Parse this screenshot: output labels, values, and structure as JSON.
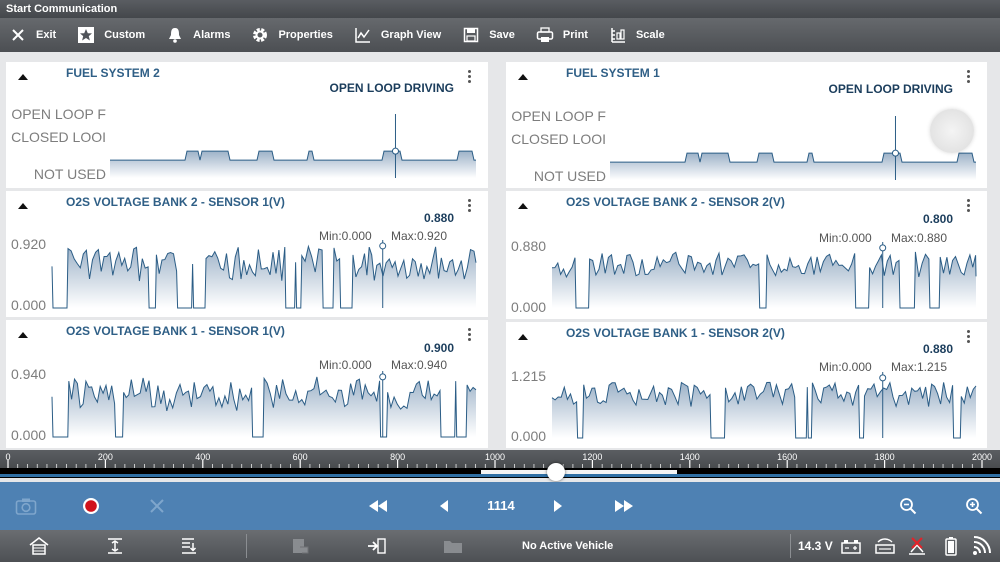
{
  "window": {
    "title": "Start Communication"
  },
  "toolbar": {
    "items": [
      {
        "label": "Exit",
        "icon": "close-icon"
      },
      {
        "label": "Custom",
        "icon": "star-icon"
      },
      {
        "label": "Alarms",
        "icon": "bell-icon"
      },
      {
        "label": "Properties",
        "icon": "gear-icon"
      },
      {
        "label": "Graph View",
        "icon": "graph-icon"
      },
      {
        "label": "Save",
        "icon": "save-icon"
      },
      {
        "label": "Print",
        "icon": "print-icon"
      },
      {
        "label": "Scale",
        "icon": "scale-icon"
      }
    ]
  },
  "panels": {
    "fuel2": {
      "title": "FUEL SYSTEM 2",
      "value": "OPEN LOOP DRIVING",
      "levels": [
        "OPEN LOOP F",
        "CLOSED LOOI",
        "NOT USED"
      ]
    },
    "fuel1": {
      "title": "FUEL SYSTEM 1",
      "value": "OPEN LOOP DRIVING",
      "levels": [
        "OPEN LOOP F",
        "CLOSED LOOI",
        "NOT USED"
      ]
    },
    "o2_b2s1": {
      "title": "O2S VOLTAGE BANK 2 - SENSOR 1(V)",
      "value": "0.880",
      "min": "Min:0.000",
      "max": "Max:0.920",
      "ymax": "0.920",
      "ymin": "0.000"
    },
    "o2_b2s2": {
      "title": "O2S VOLTAGE BANK 2 - SENSOR 2(V)",
      "value": "0.800",
      "min": "Min:0.000",
      "max": "Max:0.880",
      "ymax": "0.880",
      "ymin": "0.000"
    },
    "o2_b1s1": {
      "title": "O2S VOLTAGE BANK 1 - SENSOR 1(V)",
      "value": "0.900",
      "min": "Min:0.000",
      "max": "Max:0.940",
      "ymax": "0.940",
      "ymin": "0.000"
    },
    "o2_b1s2": {
      "title": "O2S VOLTAGE BANK 1 - SENSOR 2(V)",
      "value": "0.880",
      "min": "Min:0.000",
      "max": "Max:1.215",
      "ymax": "1.215",
      "ymin": "0.000"
    }
  },
  "timeline": {
    "ticks": [
      "0",
      "200",
      "400",
      "600",
      "800",
      "1000",
      "1200",
      "1400",
      "1600",
      "1800",
      "2000"
    ],
    "position": 1114,
    "max": 2000
  },
  "playback": {
    "frame": "1114",
    "record_color": "#d0121b"
  },
  "statusbar": {
    "vehicle": "No Active Vehicle",
    "voltage": "14.3 V"
  },
  "colors": {
    "trace": "#2b5d86",
    "fill_top": "#9db2c8",
    "fill_bottom": "#ffffff",
    "accent": "#4e81b3",
    "alert": "#e0242a"
  }
}
